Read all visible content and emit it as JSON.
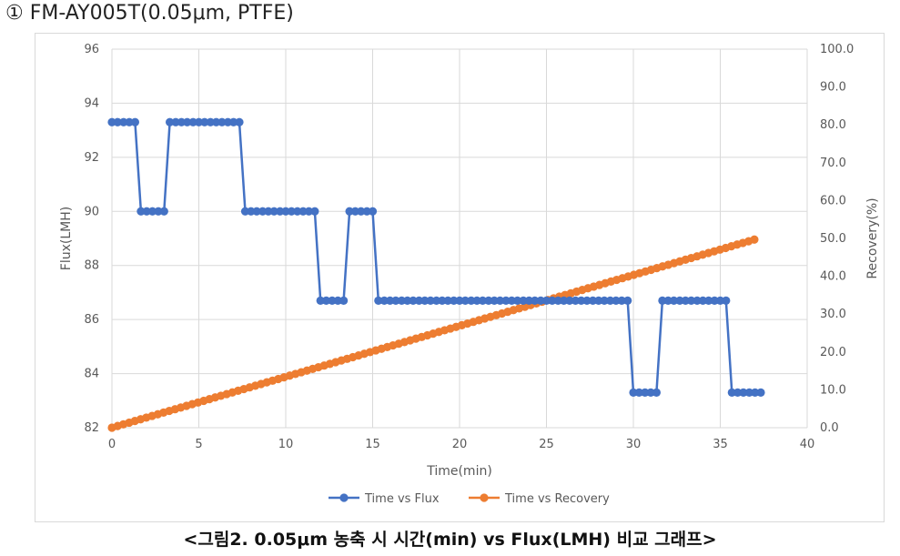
{
  "heading": "① FM-AY005T(0.05μm, PTFE)",
  "caption": "<그림2. 0.05μm 농축 시 시간(min) vs Flux(LMH) 비교 그래프>",
  "colors": {
    "flux": "#4472C4",
    "recovery": "#ED7D31",
    "grid": "#d9d9d9",
    "text": "#595959"
  },
  "chart_data": {
    "type": "line",
    "title": "",
    "xlabel": "Time(min)",
    "ylabel": "Flux(LMH)",
    "y2label": "Recovery(%)",
    "xlim": [
      0,
      40
    ],
    "ylim": [
      82,
      96
    ],
    "y2lim": [
      0,
      100
    ],
    "x_ticks": [
      "0",
      "5",
      "10",
      "15",
      "20",
      "25",
      "30",
      "35",
      "40"
    ],
    "y_ticks": [
      "82",
      "84",
      "86",
      "88",
      "90",
      "92",
      "94",
      "96"
    ],
    "y2_ticks": [
      "0.0",
      "10.0",
      "20.0",
      "30.0",
      "40.0",
      "50.0",
      "60.0",
      "70.0",
      "80.0",
      "90.0",
      "100.0"
    ],
    "grid": true,
    "legend_position": "bottom",
    "series": [
      {
        "name": "Time vs Flux",
        "axis": "left",
        "x": [
          0,
          0.33,
          0.67,
          1,
          1.33,
          1.67,
          2,
          2.33,
          2.67,
          3,
          3.33,
          3.67,
          4,
          4.33,
          4.67,
          5,
          5.33,
          5.67,
          6,
          6.33,
          6.67,
          7,
          7.33,
          7.67,
          8,
          8.33,
          8.67,
          9,
          9.33,
          9.67,
          10,
          10.33,
          10.67,
          11,
          11.33,
          11.67,
          12,
          12.33,
          12.67,
          13,
          13.33,
          13.67,
          14,
          14.33,
          14.67,
          15,
          15.33,
          15.67,
          16,
          16.33,
          16.67,
          17,
          17.33,
          17.67,
          18,
          18.33,
          18.67,
          19,
          19.33,
          19.67,
          20,
          20.33,
          20.67,
          21,
          21.33,
          21.67,
          22,
          22.33,
          22.67,
          23,
          23.33,
          23.67,
          24,
          24.33,
          24.67,
          25,
          25.33,
          25.67,
          26,
          26.33,
          26.67,
          27,
          27.33,
          27.67,
          28,
          28.33,
          28.67,
          29,
          29.33,
          29.67,
          30,
          30.33,
          30.67,
          31,
          31.33,
          31.67,
          32,
          32.33,
          32.67,
          33,
          33.33,
          33.67,
          34,
          34.33,
          34.67,
          35,
          35.33,
          35.67,
          36,
          36.33,
          36.67,
          37,
          37.33
        ],
        "values": [
          93.3,
          93.3,
          93.3,
          93.3,
          93.3,
          90,
          90,
          90,
          90,
          90,
          93.3,
          93.3,
          93.3,
          93.3,
          93.3,
          93.3,
          93.3,
          93.3,
          93.3,
          93.3,
          93.3,
          93.3,
          93.3,
          90,
          90,
          90,
          90,
          90,
          90,
          90,
          90,
          90,
          90,
          90,
          90,
          90,
          86.7,
          86.7,
          86.7,
          86.7,
          86.7,
          90,
          90,
          90,
          90,
          90,
          86.7,
          86.7,
          86.7,
          86.7,
          86.7,
          86.7,
          86.7,
          86.7,
          86.7,
          86.7,
          86.7,
          86.7,
          86.7,
          86.7,
          86.7,
          86.7,
          86.7,
          86.7,
          86.7,
          86.7,
          86.7,
          86.7,
          86.7,
          86.7,
          86.7,
          86.7,
          86.7,
          86.7,
          86.7,
          86.7,
          86.7,
          86.7,
          86.7,
          86.7,
          86.7,
          86.7,
          86.7,
          86.7,
          86.7,
          86.7,
          86.7,
          86.7,
          86.7,
          86.7,
          83.3,
          83.3,
          83.3,
          83.3,
          83.3,
          86.7,
          86.7,
          86.7,
          86.7,
          86.7,
          86.7,
          86.7,
          86.7,
          86.7,
          86.7,
          86.7,
          86.7,
          83.3,
          83.3,
          83.3,
          83.3,
          83.3,
          83.3
        ]
      },
      {
        "name": "Time vs Recovery",
        "axis": "right",
        "x_start": 0,
        "x_step": 0.33,
        "count": 113,
        "y_start": 0,
        "y_end": 49.7
      }
    ]
  }
}
